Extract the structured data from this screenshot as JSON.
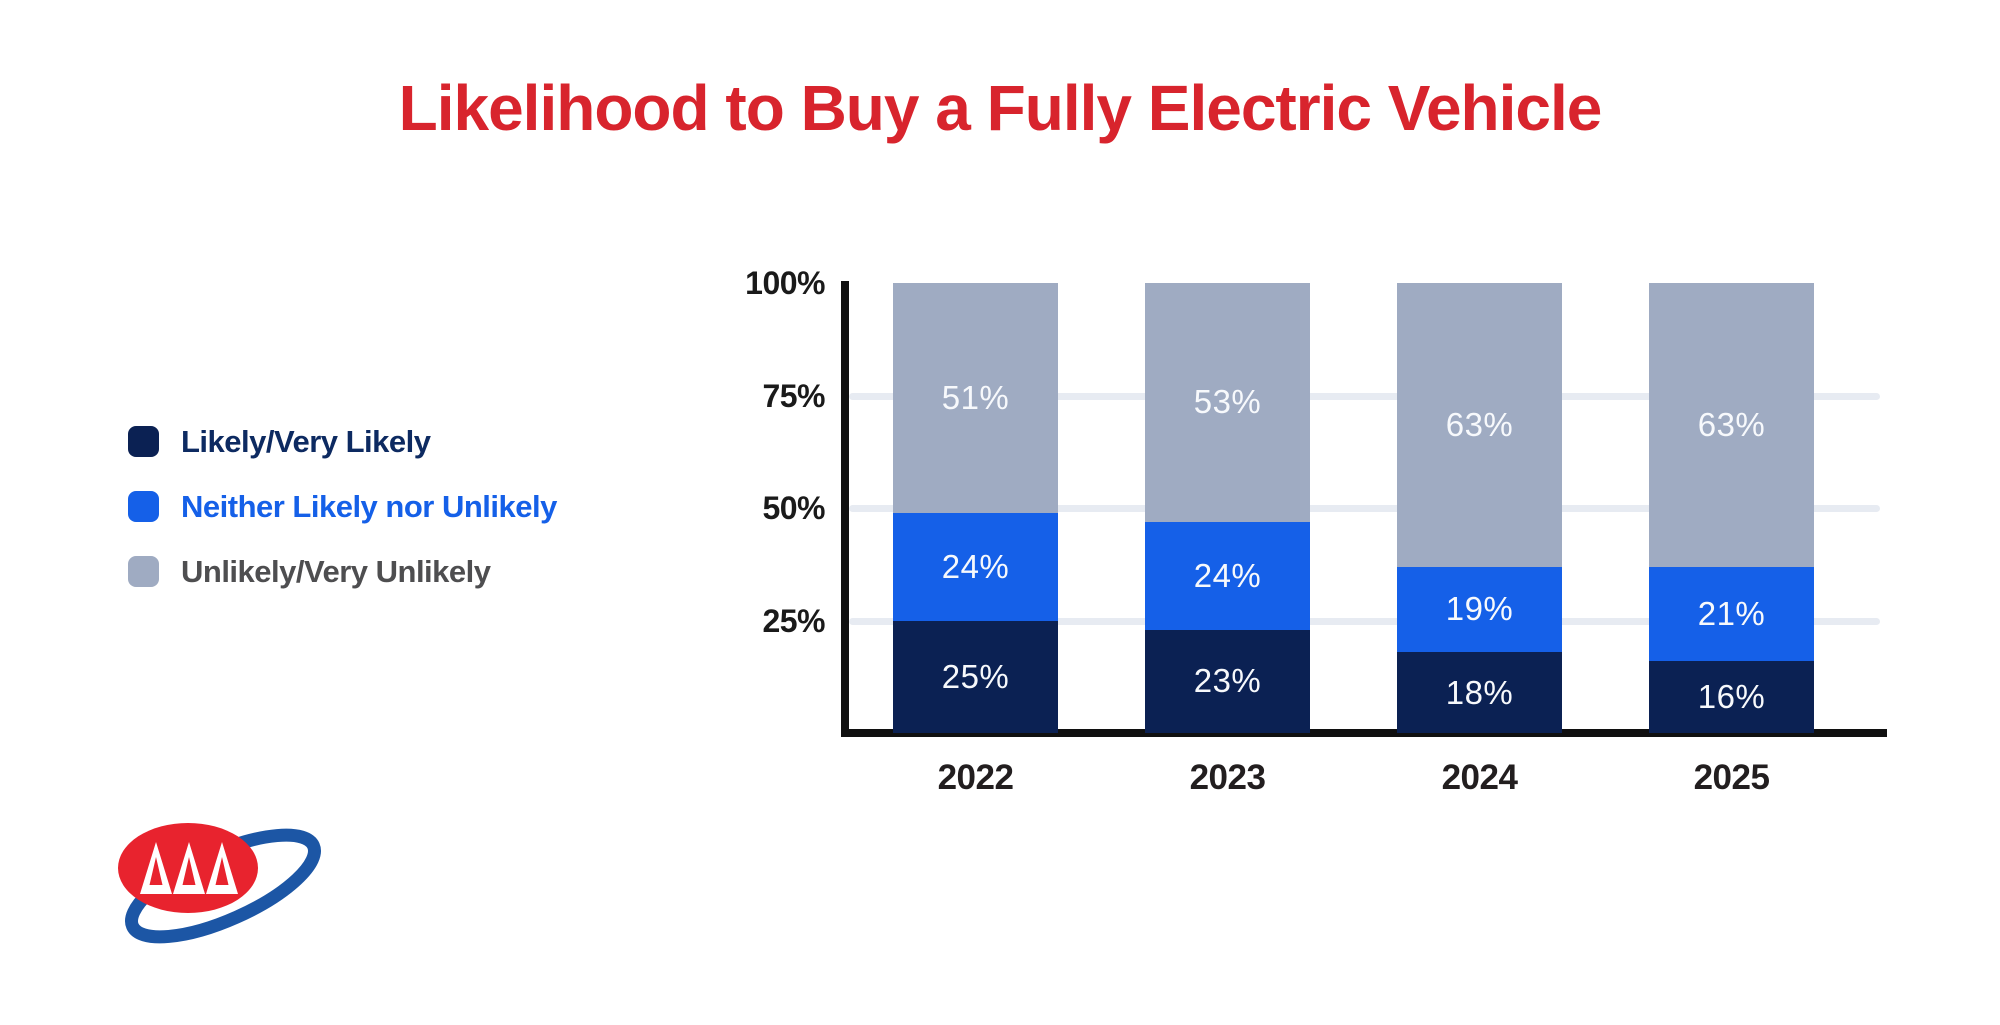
{
  "title": {
    "text": "Likelihood to Buy a Fully Electric Vehicle",
    "color": "#d8242d"
  },
  "legend": {
    "items": [
      {
        "label": "Likely/Very Likely",
        "swatch_color": "#0b2153",
        "label_color": "#0d2a61"
      },
      {
        "label": "Neither Likely nor Unlikely",
        "swatch_color": "#1560e8",
        "label_color": "#1560e8"
      },
      {
        "label": "Unlikely/Very Unlikely",
        "swatch_color": "#9fabc2",
        "label_color": "#4e4e50"
      }
    ]
  },
  "chart_data": {
    "type": "bar",
    "stacked": true,
    "categories": [
      "2022",
      "2023",
      "2024",
      "2025"
    ],
    "series": [
      {
        "name": "Likely/Very Likely",
        "color": "#0b2153",
        "values": [
          25,
          23,
          18,
          16
        ]
      },
      {
        "name": "Neither Likely nor Unlikely",
        "color": "#1560e8",
        "values": [
          24,
          24,
          19,
          21
        ]
      },
      {
        "name": "Unlikely/Very Unlikely",
        "color": "#9fabc2",
        "values": [
          51,
          53,
          63,
          63
        ]
      }
    ],
    "y_ticks": [
      {
        "label": "100%",
        "value": 100
      },
      {
        "label": "75%",
        "value": 75
      },
      {
        "label": "50%",
        "value": 50
      },
      {
        "label": "25%",
        "value": 25
      }
    ],
    "ylim": [
      0,
      100
    ],
    "grid": true,
    "legend_position": "left",
    "value_label_suffix": "%",
    "grid_color": "#e7ebf2",
    "axis_color": "#101010",
    "tick_label_color": "#1a1a1a",
    "x_label_color": "#221e1f",
    "value_label_color": "#f7f9fc"
  },
  "logo": {
    "name": "AAA",
    "red": "#e8232e",
    "blue": "#1c56a5"
  }
}
